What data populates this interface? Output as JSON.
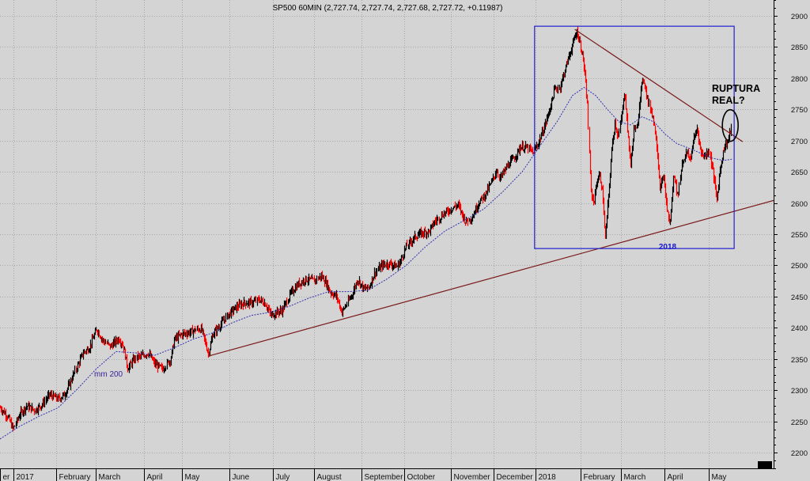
{
  "chart_data": {
    "type": "candlestick",
    "title": "SP500 60MIN (2,727.74, 2,727.74, 2,727.68, 2,727.72, +0.11987)",
    "ylim": [
      2175,
      2925
    ],
    "yticks": [
      2200,
      2250,
      2300,
      2350,
      2400,
      2450,
      2500,
      2550,
      2600,
      2650,
      2700,
      2750,
      2800,
      2850,
      2900
    ],
    "xlim": [
      0,
      100
    ],
    "month_labels": [
      {
        "label": "er",
        "x": 0.0
      },
      {
        "label": "2017",
        "x": 1.7
      },
      {
        "label": "February",
        "x": 7.3
      },
      {
        "label": "March",
        "x": 12.4
      },
      {
        "label": "April",
        "x": 18.6
      },
      {
        "label": "May",
        "x": 23.5
      },
      {
        "label": "June",
        "x": 29.7
      },
      {
        "label": "July",
        "x": 35.3
      },
      {
        "label": "August",
        "x": 40.6
      },
      {
        "label": "September",
        "x": 46.7
      },
      {
        "label": "October",
        "x": 52.2
      },
      {
        "label": "November",
        "x": 58.3
      },
      {
        "label": "December",
        "x": 63.8
      },
      {
        "label": "2018",
        "x": 69.2
      },
      {
        "label": "February",
        "x": 75.1
      },
      {
        "label": "March",
        "x": 80.3
      },
      {
        "label": "April",
        "x": 85.9
      },
      {
        "label": "May",
        "x": 91.6
      }
    ],
    "price_path": [
      [
        0.0,
        2272
      ],
      [
        1.0,
        2258
      ],
      [
        1.7,
        2238
      ],
      [
        2.5,
        2262
      ],
      [
        3.4,
        2275
      ],
      [
        4.5,
        2268
      ],
      [
        5.5,
        2278
      ],
      [
        6.3,
        2293
      ],
      [
        7.5,
        2286
      ],
      [
        8.3,
        2293
      ],
      [
        9.0,
        2310
      ],
      [
        9.8,
        2335
      ],
      [
        10.7,
        2360
      ],
      [
        11.5,
        2368
      ],
      [
        12.5,
        2398
      ],
      [
        13.3,
        2380
      ],
      [
        14.2,
        2370
      ],
      [
        15.3,
        2383
      ],
      [
        15.9,
        2372
      ],
      [
        16.5,
        2335
      ],
      [
        17.5,
        2352
      ],
      [
        18.3,
        2355
      ],
      [
        19.1,
        2360
      ],
      [
        20.0,
        2342
      ],
      [
        21.0,
        2334
      ],
      [
        22.0,
        2350
      ],
      [
        22.5,
        2382
      ],
      [
        23.5,
        2390
      ],
      [
        24.5,
        2393
      ],
      [
        25.3,
        2397
      ],
      [
        26.0,
        2398
      ],
      [
        26.9,
        2358
      ],
      [
        27.5,
        2390
      ],
      [
        28.5,
        2405
      ],
      [
        29.5,
        2422
      ],
      [
        30.5,
        2433
      ],
      [
        31.5,
        2440
      ],
      [
        32.5,
        2440
      ],
      [
        33.5,
        2445
      ],
      [
        34.3,
        2438
      ],
      [
        35.0,
        2420
      ],
      [
        35.8,
        2425
      ],
      [
        36.5,
        2428
      ],
      [
        37.5,
        2455
      ],
      [
        38.5,
        2470
      ],
      [
        39.5,
        2478
      ],
      [
        40.5,
        2475
      ],
      [
        41.5,
        2483
      ],
      [
        42.2,
        2470
      ],
      [
        42.6,
        2458
      ],
      [
        43.5,
        2450
      ],
      [
        44.2,
        2425
      ],
      [
        44.8,
        2438
      ],
      [
        45.5,
        2455
      ],
      [
        46.2,
        2478
      ],
      [
        47.0,
        2462
      ],
      [
        47.7,
        2465
      ],
      [
        48.4,
        2487
      ],
      [
        49.3,
        2500
      ],
      [
        50.3,
        2503
      ],
      [
        51.3,
        2498
      ],
      [
        51.8,
        2508
      ],
      [
        52.5,
        2530
      ],
      [
        53.5,
        2545
      ],
      [
        54.5,
        2552
      ],
      [
        55.5,
        2555
      ],
      [
        56.2,
        2570
      ],
      [
        57.2,
        2582
      ],
      [
        58.2,
        2590
      ],
      [
        59.2,
        2597
      ],
      [
        60.2,
        2570
      ],
      [
        61.0,
        2578
      ],
      [
        61.8,
        2600
      ],
      [
        62.6,
        2612
      ],
      [
        63.5,
        2632
      ],
      [
        64.2,
        2652
      ],
      [
        64.6,
        2640
      ],
      [
        65.6,
        2660
      ],
      [
        66.6,
        2675
      ],
      [
        67.3,
        2690
      ],
      [
        68.2,
        2688
      ],
      [
        68.8,
        2680
      ],
      [
        69.5,
        2695
      ],
      [
        70.3,
        2720
      ],
      [
        71.0,
        2748
      ],
      [
        71.7,
        2782
      ],
      [
        72.3,
        2785
      ],
      [
        72.9,
        2810
      ],
      [
        73.5,
        2835
      ],
      [
        74.1,
        2858
      ],
      [
        74.5,
        2875
      ],
      [
        74.9,
        2860
      ],
      [
        75.4,
        2830
      ],
      [
        75.9,
        2762
      ],
      [
        76.3,
        2620
      ],
      [
        76.7,
        2600
      ],
      [
        77.1,
        2635
      ],
      [
        77.5,
        2645
      ],
      [
        77.9,
        2610
      ],
      [
        78.2,
        2540
      ],
      [
        78.7,
        2620
      ],
      [
        79.1,
        2690
      ],
      [
        79.5,
        2730
      ],
      [
        79.9,
        2705
      ],
      [
        80.3,
        2740
      ],
      [
        80.7,
        2780
      ],
      [
        81.1,
        2710
      ],
      [
        81.5,
        2660
      ],
      [
        81.9,
        2720
      ],
      [
        82.3,
        2715
      ],
      [
        82.8,
        2780
      ],
      [
        83.2,
        2800
      ],
      [
        83.8,
        2760
      ],
      [
        84.3,
        2740
      ],
      [
        84.8,
        2700
      ],
      [
        85.3,
        2620
      ],
      [
        85.7,
        2645
      ],
      [
        86.2,
        2590
      ],
      [
        86.6,
        2565
      ],
      [
        87.1,
        2650
      ],
      [
        87.6,
        2610
      ],
      [
        88.1,
        2665
      ],
      [
        88.7,
        2680
      ],
      [
        89.2,
        2670
      ],
      [
        89.6,
        2700
      ],
      [
        90.1,
        2720
      ],
      [
        90.6,
        2680
      ],
      [
        91.1,
        2675
      ],
      [
        91.6,
        2685
      ],
      [
        92.1,
        2650
      ],
      [
        92.6,
        2605
      ],
      [
        93.1,
        2660
      ],
      [
        93.6,
        2690
      ],
      [
        94.1,
        2700
      ],
      [
        94.6,
        2728
      ]
    ],
    "ma_path": [
      [
        0.0,
        2222
      ],
      [
        2.5,
        2242
      ],
      [
        5.0,
        2258
      ],
      [
        7.5,
        2272
      ],
      [
        10.0,
        2302
      ],
      [
        12.5,
        2335
      ],
      [
        15.0,
        2362
      ],
      [
        17.5,
        2360
      ],
      [
        20.0,
        2356
      ],
      [
        22.5,
        2368
      ],
      [
        25.0,
        2382
      ],
      [
        27.5,
        2392
      ],
      [
        30.0,
        2408
      ],
      [
        32.5,
        2420
      ],
      [
        35.0,
        2425
      ],
      [
        37.5,
        2435
      ],
      [
        40.0,
        2448
      ],
      [
        42.5,
        2458
      ],
      [
        45.0,
        2458
      ],
      [
        47.5,
        2460
      ],
      [
        50.0,
        2478
      ],
      [
        52.5,
        2500
      ],
      [
        55.0,
        2530
      ],
      [
        57.5,
        2555
      ],
      [
        60.0,
        2572
      ],
      [
        62.5,
        2590
      ],
      [
        65.0,
        2618
      ],
      [
        67.5,
        2650
      ],
      [
        70.0,
        2695
      ],
      [
        72.0,
        2730
      ],
      [
        74.0,
        2772
      ],
      [
        75.5,
        2785
      ],
      [
        77.0,
        2772
      ],
      [
        78.5,
        2750
      ],
      [
        80.0,
        2730
      ],
      [
        81.5,
        2725
      ],
      [
        83.0,
        2738
      ],
      [
        84.5,
        2730
      ],
      [
        86.0,
        2710
      ],
      [
        87.5,
        2695
      ],
      [
        89.0,
        2688
      ],
      [
        90.5,
        2680
      ],
      [
        92.0,
        2672
      ],
      [
        93.5,
        2668
      ],
      [
        94.6,
        2670
      ]
    ],
    "support_line": [
      [
        27.0,
        2355
      ],
      [
        100.0,
        2604
      ]
    ],
    "resistance_line": [
      [
        74.3,
        2878
      ],
      [
        96.0,
        2698
      ]
    ],
    "box": {
      "x": [
        69.1,
        94.9
      ],
      "y": [
        2527,
        2883
      ]
    },
    "annotations": {
      "ma_label": "mm 200",
      "box_label": "2018",
      "callout_line1": "RUPTURA",
      "callout_line2": "REAL?"
    },
    "grid": true,
    "colors": {
      "background": "#d4d4d4",
      "grid": "#a8a8a8",
      "up_candle": "#000000",
      "down_candle": "#ff0000",
      "ma": "#3030b0",
      "trendline": "#7a1818",
      "box": "#2020d0",
      "box_label": "#1a1acc",
      "ma_label": "#3a1f9a",
      "axis_bg": "#d4d4d4",
      "axis_text": "#111111"
    }
  }
}
